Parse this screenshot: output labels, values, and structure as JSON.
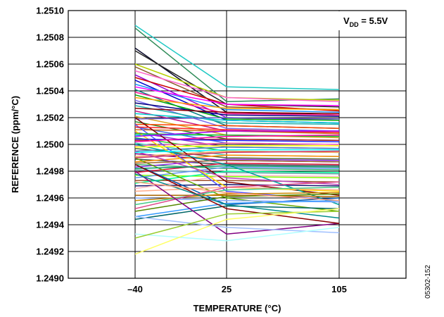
{
  "chart_data": {
    "type": "line",
    "title": "",
    "xlabel": "TEMPERATURE (°C)",
    "ylabel": "REFERENCE (ppm/°C)",
    "x": [
      -40,
      25,
      105
    ],
    "x_tick_labels": [
      "–40",
      "25",
      "105"
    ],
    "x_range": [
      -87.5,
      152.5
    ],
    "ylim": [
      1.249,
      1.251
    ],
    "y_ticks": [
      1.249,
      1.2492,
      1.2494,
      1.2496,
      1.2498,
      1.25,
      1.2502,
      1.2504,
      1.2506,
      1.2508,
      1.251
    ],
    "y_tick_labels": [
      "1.2490",
      "1.2492",
      "1.2494",
      "1.2496",
      "1.2498",
      "1.2500",
      "1.2502",
      "1.2504",
      "1.2506",
      "1.2508",
      "1.2510"
    ],
    "grid": true,
    "legend": "none",
    "annotation": {
      "prefix": "V",
      "subscript": "DD",
      "suffix": " = 5.5V",
      "placement": "top-right"
    },
    "series": [
      {
        "values": [
          1.25089,
          1.25043,
          1.25041
        ],
        "color": "#1fc9c4"
      },
      {
        "values": [
          1.25087,
          1.25032,
          1.25034
        ],
        "color": "#2e8b57"
      },
      {
        "values": [
          1.25072,
          1.25024,
          1.25022
        ],
        "color": "#0a0a2a"
      },
      {
        "values": [
          1.2507,
          1.2503,
          1.25028
        ],
        "color": "#222222"
      },
      {
        "values": [
          1.2506,
          1.25035,
          1.25033
        ],
        "color": "#b8d000"
      },
      {
        "values": [
          1.25058,
          1.25028,
          1.25026
        ],
        "color": "#8b5a2b"
      },
      {
        "values": [
          1.25055,
          1.25035,
          1.25032
        ],
        "color": "#ff66cc"
      },
      {
        "values": [
          1.25052,
          1.2502,
          1.25018
        ],
        "color": "#9400d3"
      },
      {
        "values": [
          1.2505,
          1.2503,
          1.25025
        ],
        "color": "#cc0000"
      },
      {
        "values": [
          1.25048,
          1.25018,
          1.25016
        ],
        "color": "#0000cc"
      },
      {
        "values": [
          1.25045,
          1.25026,
          1.25024
        ],
        "color": "#1e90ff"
      },
      {
        "values": [
          1.25043,
          1.2503,
          1.25029
        ],
        "color": "#ff00ff"
      },
      {
        "values": [
          1.25041,
          1.25014,
          1.25012
        ],
        "color": "#008080"
      },
      {
        "values": [
          1.25039,
          1.25023,
          1.25022
        ],
        "color": "#ff1493"
      },
      {
        "values": [
          1.25037,
          1.25019,
          1.25018
        ],
        "color": "#00aa00"
      },
      {
        "values": [
          1.25035,
          1.25027,
          1.25026
        ],
        "color": "#ffa500"
      },
      {
        "values": [
          1.25033,
          1.25012,
          1.2501
        ],
        "color": "#7b68ee"
      },
      {
        "values": [
          1.25031,
          1.25022,
          1.25021
        ],
        "color": "#000080"
      },
      {
        "values": [
          1.25029,
          1.25016,
          1.25015
        ],
        "color": "#20b2aa"
      },
      {
        "values": [
          1.25027,
          1.25024,
          1.25023
        ],
        "color": "#8b0000"
      },
      {
        "values": [
          1.25025,
          1.2501,
          1.25009
        ],
        "color": "#c71585"
      },
      {
        "values": [
          1.25023,
          1.25018,
          1.25016
        ],
        "color": "#00ced1"
      },
      {
        "values": [
          1.25021,
          1.25007,
          1.25005
        ],
        "color": "#daa520"
      },
      {
        "values": [
          1.25019,
          1.2502,
          1.25019
        ],
        "color": "#6a5acd"
      },
      {
        "values": [
          1.25017,
          1.25004,
          1.25003
        ],
        "color": "#228b22"
      },
      {
        "values": [
          1.25015,
          1.25014,
          1.25012
        ],
        "color": "#ff4500"
      },
      {
        "values": [
          1.25013,
          1.25001,
          1.25
        ],
        "color": "#4169e1"
      },
      {
        "values": [
          1.25011,
          1.2501,
          1.25008
        ],
        "color": "#d2691e"
      },
      {
        "values": [
          1.25009,
          1.24998,
          1.24997
        ],
        "color": "#9932cc"
      },
      {
        "values": [
          1.25007,
          1.25007,
          1.25006
        ],
        "color": "#00bfff"
      },
      {
        "values": [
          1.25005,
          1.24995,
          1.24994
        ],
        "color": "#32cd32"
      },
      {
        "values": [
          1.25003,
          1.25004,
          1.25003
        ],
        "color": "#b22222"
      },
      {
        "values": [
          1.25001,
          1.24992,
          1.24991
        ],
        "color": "#48d1cc"
      },
      {
        "values": [
          1.24999,
          1.25001,
          1.25
        ],
        "color": "#ff69b4"
      },
      {
        "values": [
          1.24997,
          1.2499,
          1.24989
        ],
        "color": "#556b2f"
      },
      {
        "values": [
          1.24995,
          1.24998,
          1.24997
        ],
        "color": "#4682b4"
      },
      {
        "values": [
          1.24993,
          1.24988,
          1.24987
        ],
        "color": "#800080"
      },
      {
        "values": [
          1.24991,
          1.24995,
          1.24994
        ],
        "color": "#f4a460"
      },
      {
        "values": [
          1.24989,
          1.24985,
          1.24984
        ],
        "color": "#2f4f4f"
      },
      {
        "values": [
          1.24987,
          1.24992,
          1.24991
        ],
        "color": "#ff8c00"
      },
      {
        "values": [
          1.24985,
          1.24982,
          1.24981
        ],
        "color": "#3cb371"
      },
      {
        "values": [
          1.24983,
          1.24989,
          1.24988
        ],
        "color": "#8a2be2"
      },
      {
        "values": [
          1.24981,
          1.24979,
          1.24978
        ],
        "color": "#5f9ea0"
      },
      {
        "values": [
          1.24979,
          1.24986,
          1.24985
        ],
        "color": "#dc143c"
      },
      {
        "values": [
          1.24977,
          1.24976,
          1.24975
        ],
        "color": "#7fff00"
      },
      {
        "values": [
          1.24975,
          1.24983,
          1.24982
        ],
        "color": "#6495ed"
      },
      {
        "values": [
          1.24973,
          1.24973,
          1.24972
        ],
        "color": "#a0522d"
      },
      {
        "values": [
          1.24971,
          1.2498,
          1.24979
        ],
        "color": "#00fa9a"
      },
      {
        "values": [
          1.24969,
          1.2497,
          1.24969
        ],
        "color": "#191970"
      },
      {
        "values": [
          1.24967,
          1.24977,
          1.24976
        ],
        "color": "#ffb6c1"
      },
      {
        "values": [
          1.2502,
          1.24972,
          1.24962
        ],
        "color": "#800000"
      },
      {
        "values": [
          1.25015,
          1.24965,
          1.24958
        ],
        "color": "#5555ff"
      },
      {
        "values": [
          1.2501,
          1.24968,
          1.24965
        ],
        "color": "#ffd700"
      },
      {
        "values": [
          1.25,
          1.24985,
          1.24955
        ],
        "color": "#00a0a0"
      },
      {
        "values": [
          1.24995,
          1.24975,
          1.2497
        ],
        "color": "#bb44bb"
      },
      {
        "values": [
          1.2499,
          1.2496,
          1.2495
        ],
        "color": "#66aa00"
      },
      {
        "values": [
          1.24985,
          1.24955,
          1.2496
        ],
        "color": "#0055aa"
      },
      {
        "values": [
          1.24965,
          1.24968,
          1.24966
        ],
        "color": "#ffaa88"
      },
      {
        "values": [
          1.24962,
          1.24962,
          1.24961
        ],
        "color": "#aa6600"
      },
      {
        "values": [
          1.2496,
          1.24958,
          1.24957
        ],
        "color": "#88aaff"
      },
      {
        "values": [
          1.24958,
          1.24963,
          1.24964
        ],
        "color": "#cc8800"
      },
      {
        "values": [
          1.24955,
          1.24966,
          1.24968
        ],
        "color": "#44cc88"
      },
      {
        "values": [
          1.24952,
          1.24968,
          1.24972
        ],
        "color": "#dd4488"
      },
      {
        "values": [
          1.2495,
          1.24961,
          1.24963
        ],
        "color": "#558800"
      },
      {
        "values": [
          1.24946,
          1.24956,
          1.24958
        ],
        "color": "#3399ff"
      },
      {
        "values": [
          1.24944,
          1.24954,
          1.24952
        ],
        "color": "#006666"
      },
      {
        "values": [
          1.25013,
          1.25011,
          1.25009
        ],
        "color": "#ff2222"
      },
      {
        "values": [
          1.25008,
          1.25007,
          1.25006
        ],
        "color": "#22bb22"
      },
      {
        "values": [
          1.25004,
          1.25003,
          1.25002
        ],
        "color": "#2222ff"
      },
      {
        "values": [
          1.24998,
          1.24999,
          1.24999
        ],
        "color": "#ffff00"
      },
      {
        "values": [
          1.24994,
          1.24996,
          1.24996
        ],
        "color": "#00ffff"
      },
      {
        "values": [
          1.25002,
          1.25006,
          1.25007
        ],
        "color": "#ff00aa"
      },
      {
        "values": [
          1.25006,
          1.2501,
          1.2501
        ],
        "color": "#aa00ff"
      },
      {
        "values": [
          1.24986,
          1.24988,
          1.24987
        ],
        "color": "#996633"
      },
      {
        "values": [
          1.24982,
          1.24984,
          1.24983
        ],
        "color": "#009966"
      },
      {
        "values": [
          1.2499,
          1.24994,
          1.24995
        ],
        "color": "#cc3366"
      },
      {
        "values": [
          1.2498,
          1.24933,
          1.24941
        ],
        "color": "#800080"
      },
      {
        "values": [
          1.24985,
          1.24952,
          1.24941
        ],
        "color": "#8b0000"
      },
      {
        "values": [
          1.24978,
          1.24955,
          1.24945
        ],
        "color": "#008b8b"
      },
      {
        "values": [
          1.24972,
          1.24964,
          1.24958
        ],
        "color": "#ffa07a"
      },
      {
        "values": [
          1.24946,
          1.24938,
          1.24934
        ],
        "color": "#a0c0ff"
      },
      {
        "values": [
          1.24933,
          1.24928,
          1.24938
        ],
        "color": "#b0ffff"
      },
      {
        "values": [
          1.2493,
          1.24948,
          1.2495
        ],
        "color": "#9acd32"
      },
      {
        "values": [
          1.24918,
          1.24944,
          1.24952
        ],
        "color": "#ffff66"
      }
    ]
  },
  "figure_id": "05302-152"
}
